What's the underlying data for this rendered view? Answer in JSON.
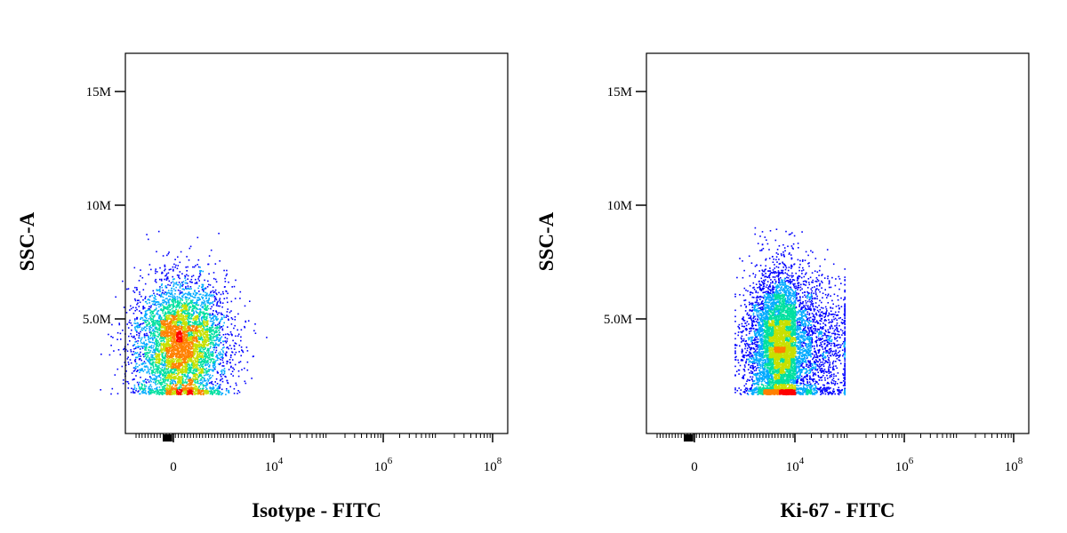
{
  "chart_data": [
    {
      "type": "scatter",
      "style": "density-dot-plot",
      "xlabel": "Isotype - FITC",
      "ylabel": "SSC-A",
      "x_scale": "biexponential",
      "x_ticks": [
        {
          "value": 0,
          "base": "0",
          "exp": ""
        },
        {
          "value": 10000,
          "base": "10",
          "exp": "4"
        },
        {
          "value": 1000000,
          "base": "10",
          "exp": "6"
        },
        {
          "value": 100000000,
          "base": "10",
          "exp": "8"
        }
      ],
      "y_ticks": [
        {
          "value": 5000000,
          "label": "5.0M"
        },
        {
          "value": 10000000,
          "label": "10M"
        },
        {
          "value": 15000000,
          "label": "15M"
        }
      ],
      "ylim": [
        0,
        17000000
      ],
      "density_colors": [
        "#0000ff",
        "#00aaff",
        "#00e0a0",
        "#c8e000",
        "#ff8000",
        "#ff0000"
      ],
      "populations": [
        {
          "x_center": 300,
          "x_spread": 1600,
          "y_center": 3900000,
          "y_spread": 1500000,
          "y_min": 1700000,
          "y_max": 9200000,
          "count": 5200
        }
      ]
    },
    {
      "type": "scatter",
      "style": "density-dot-plot",
      "xlabel": "Ki-67 - FITC",
      "ylabel": "SSC-A",
      "x_scale": "biexponential",
      "x_ticks": [
        {
          "value": 0,
          "base": "0",
          "exp": ""
        },
        {
          "value": 10000,
          "base": "10",
          "exp": "4"
        },
        {
          "value": 1000000,
          "base": "10",
          "exp": "6"
        },
        {
          "value": 100000000,
          "base": "10",
          "exp": "8"
        }
      ],
      "y_ticks": [
        {
          "value": 5000000,
          "label": "5.0M"
        },
        {
          "value": 10000000,
          "label": "10M"
        },
        {
          "value": 15000000,
          "label": "15M"
        }
      ],
      "ylim": [
        0,
        17000000
      ],
      "density_colors": [
        "#0000ff",
        "#00aaff",
        "#00e0a0",
        "#c8e000",
        "#ff8000",
        "#ff0000"
      ],
      "populations": [
        {
          "x_log_min": 2.3,
          "x_log_max": 4.7,
          "y_center": 3800000,
          "y_spread": 1600000,
          "y_min": 1700000,
          "y_max": 9100000,
          "count": 7500,
          "hot_x_log": 3.8
        }
      ]
    }
  ]
}
